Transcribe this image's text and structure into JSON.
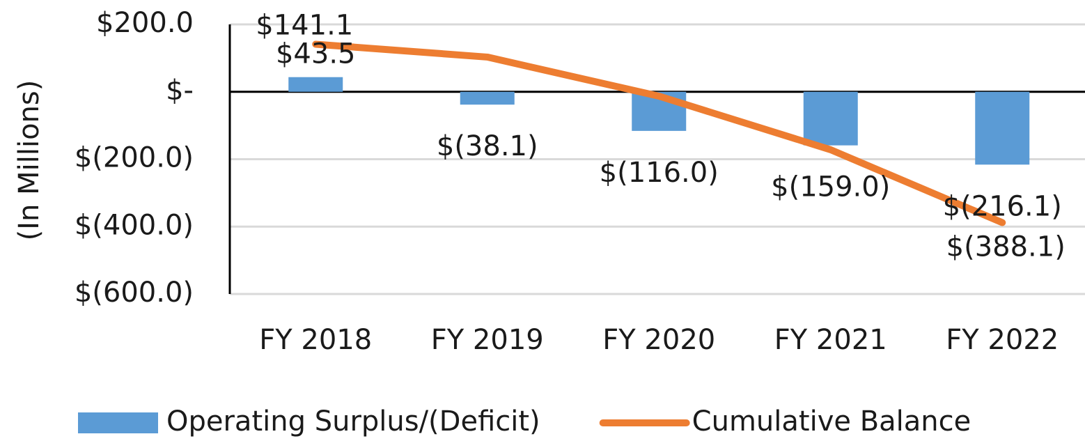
{
  "chart_data": {
    "type": "bar",
    "y_label": "(In Millions)",
    "categories": [
      "FY 2018",
      "FY 2019",
      "FY 2020",
      "FY 2021",
      "FY 2022"
    ],
    "series": [
      {
        "name": "Operating Surplus/(Deficit)",
        "type": "bar",
        "color": "#5b9bd5",
        "values": [
          43.5,
          -38.1,
          -116.0,
          -159.0,
          -216.1
        ],
        "value_labels": [
          "$43.5",
          "$(38.1)",
          "$(116.0)",
          "$(159.0)",
          "$(216.1)"
        ]
      },
      {
        "name": "Cumulative Balance",
        "type": "line",
        "color": "#ed7d31",
        "values": [
          141.1,
          103.0,
          -13.0,
          -172.0,
          -388.1
        ],
        "value_labels": [
          "$141.1",
          null,
          null,
          null,
          "$(388.1)"
        ]
      }
    ],
    "ylim": [
      -600,
      200
    ],
    "yticks": [
      {
        "value": 200,
        "label": "$200.0"
      },
      {
        "value": 0,
        "label": "$-"
      },
      {
        "value": -200,
        "label": "$(200.0)"
      },
      {
        "value": -400,
        "label": "$(400.0)"
      },
      {
        "value": -600,
        "label": "$(600.0)"
      }
    ],
    "grid": true,
    "legend": "bottom"
  }
}
